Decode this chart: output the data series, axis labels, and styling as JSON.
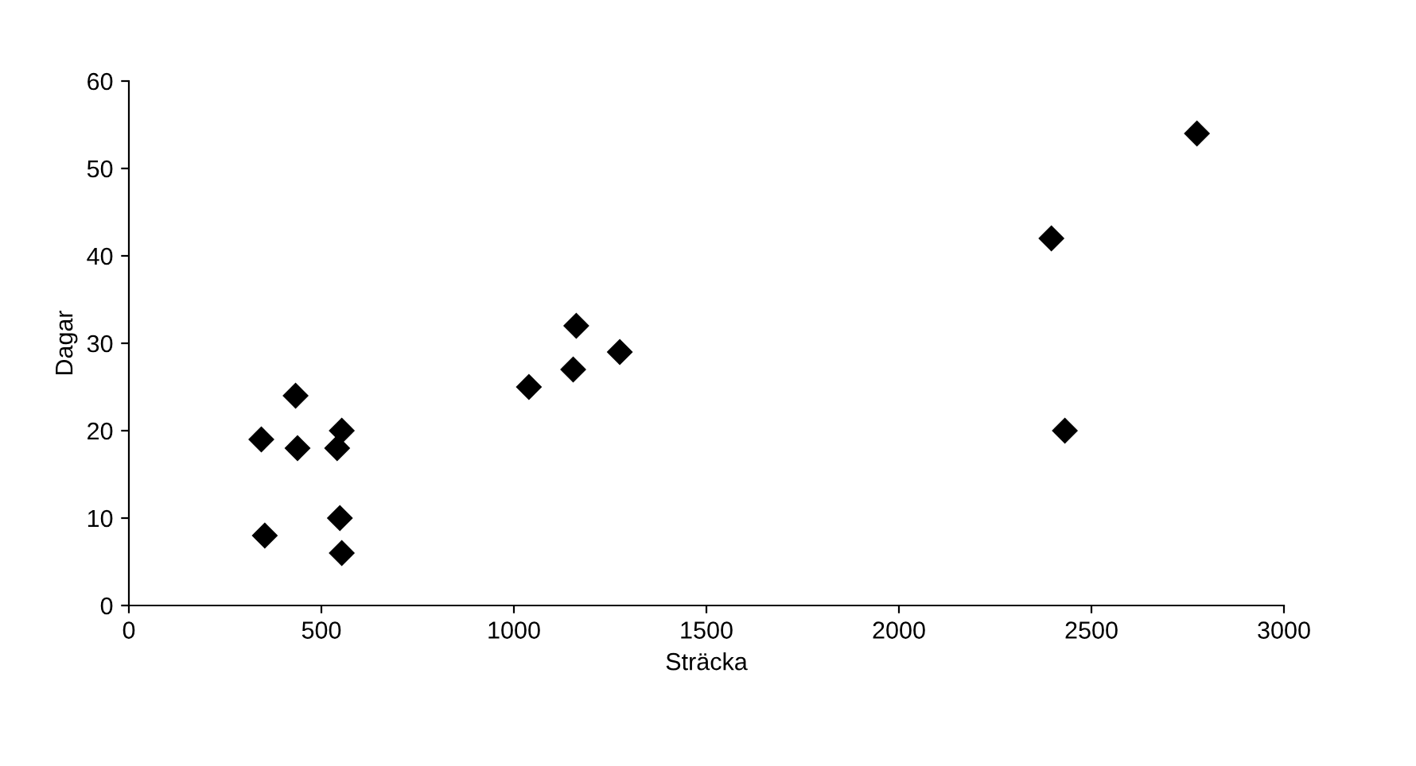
{
  "chart_data": {
    "type": "scatter",
    "xlabel": "Sträcka",
    "ylabel": "Dagar",
    "series": [
      {
        "color": "#000000",
        "x": [
          344,
          353,
          433,
          438,
          541,
          553,
          548,
          553,
          1039,
          1162,
          1154,
          1275,
          2774,
          2396,
          2431
        ],
        "values": [
          19,
          8,
          24,
          18,
          18,
          20,
          10,
          6,
          25,
          32,
          27,
          29,
          54,
          42,
          20
        ]
      }
    ],
    "xlim": [
      0,
      3000
    ],
    "xticks": [
      0,
      500,
      1000,
      1500,
      2000,
      2500,
      3000
    ],
    "ylim": [
      0,
      60
    ],
    "yticks": [
      0,
      10,
      20,
      30,
      40,
      50,
      60
    ],
    "marker": "diamond",
    "grid": false,
    "legend": false
  }
}
